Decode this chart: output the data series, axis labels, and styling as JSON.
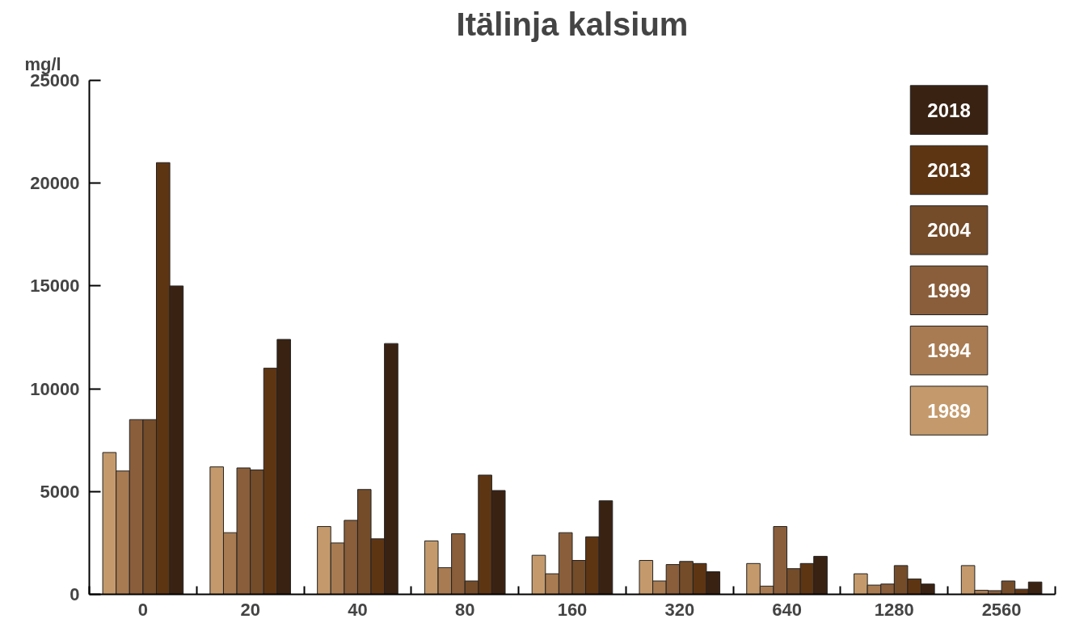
{
  "chart_data": {
    "type": "bar",
    "title": "Itälinja kalsium",
    "ylabel": "mg/l",
    "categories": [
      "0",
      "20",
      "40",
      "80",
      "160",
      "320",
      "640",
      "1280",
      "2560"
    ],
    "series": [
      {
        "name": "1989",
        "color": "#c49a6c",
        "values": [
          6900,
          6200,
          3300,
          2600,
          1900,
          1650,
          1500,
          1000,
          1400
        ]
      },
      {
        "name": "1994",
        "color": "#a87b52",
        "values": [
          6000,
          3000,
          2500,
          1300,
          1000,
          650,
          400,
          450,
          200
        ]
      },
      {
        "name": "1999",
        "color": "#8a5e3b",
        "values": [
          8500,
          6150,
          3600,
          2950,
          3000,
          1450,
          3300,
          500,
          180
        ]
      },
      {
        "name": "2004",
        "color": "#744c2a",
        "values": [
          8500,
          6050,
          5100,
          650,
          1650,
          1600,
          1250,
          1400,
          650
        ]
      },
      {
        "name": "2013",
        "color": "#5e3513",
        "values": [
          21000,
          11000,
          2700,
          5800,
          2800,
          1500,
          1500,
          750,
          250
        ]
      },
      {
        "name": "2018",
        "color": "#3a2213",
        "values": [
          15000,
          12400,
          12200,
          5050,
          4550,
          1100,
          1850,
          500,
          600
        ]
      }
    ],
    "ylim": [
      0,
      25000
    ],
    "yticks": [
      0,
      5000,
      10000,
      15000,
      20000,
      25000
    ],
    "grid": false,
    "legend": "top right"
  }
}
